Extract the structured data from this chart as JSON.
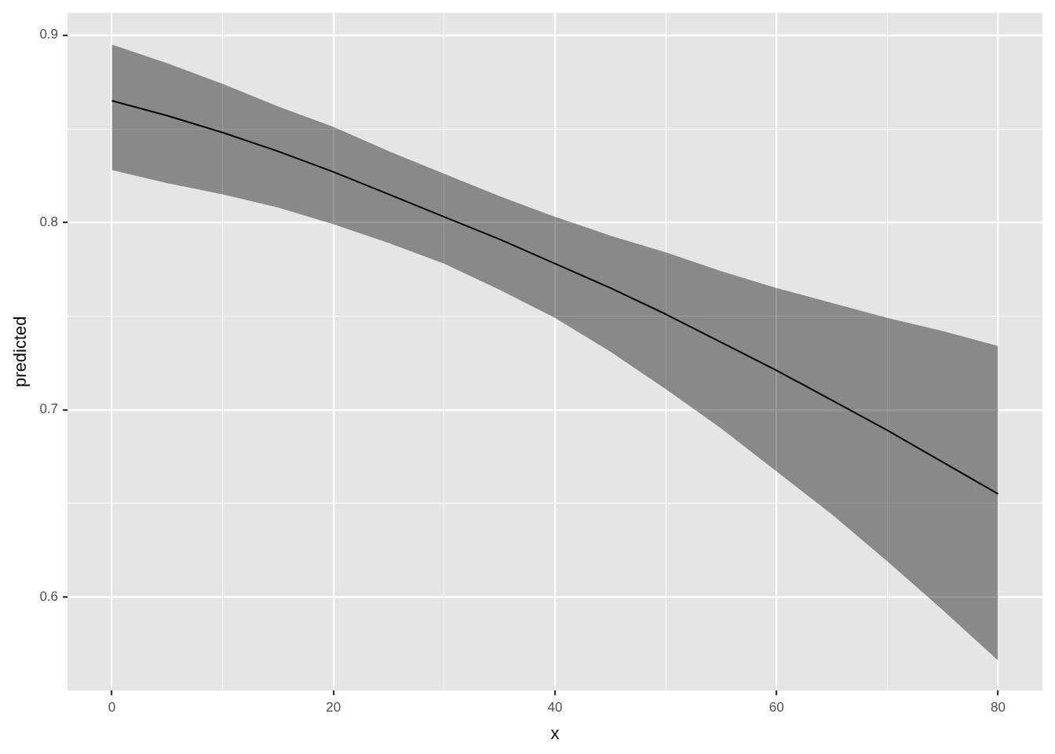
{
  "chart_data": {
    "type": "line",
    "xlabel": "x",
    "ylabel": "predicted",
    "x": [
      0,
      5,
      10,
      15,
      20,
      25,
      30,
      35,
      40,
      45,
      50,
      55,
      60,
      65,
      70,
      75,
      80
    ],
    "series": [
      {
        "color": "#000000",
        "values": [
          0.865,
          0.857,
          0.848,
          0.838,
          0.827,
          0.815,
          0.803,
          0.791,
          0.778,
          0.765,
          0.751,
          0.736,
          0.721,
          0.705,
          0.689,
          0.672,
          0.655
        ],
        "upper": [
          0.895,
          0.885,
          0.874,
          0.862,
          0.851,
          0.838,
          0.826,
          0.814,
          0.803,
          0.793,
          0.784,
          0.774,
          0.765,
          0.757,
          0.749,
          0.742,
          0.734
        ],
        "lower": [
          0.828,
          0.821,
          0.815,
          0.808,
          0.799,
          0.789,
          0.778,
          0.764,
          0.749,
          0.731,
          0.711,
          0.69,
          0.667,
          0.644,
          0.619,
          0.593,
          0.566
        ]
      }
    ],
    "xlim": [
      -4,
      84
    ],
    "xticks": [
      0,
      {
        "value": 10,
        "label": null
      },
      20,
      {
        "value": 30,
        "label": null
      },
      40,
      {
        "value": 50,
        "label": null
      },
      60,
      {
        "value": 70,
        "label": null
      },
      80
    ],
    "ylim": [
      0.55,
      0.912
    ],
    "yticks": [
      0.6,
      {
        "value": 0.65,
        "label": null
      },
      0.7,
      {
        "value": 0.75,
        "label": null
      },
      0.8,
      {
        "value": 0.85,
        "label": null
      },
      0.9
    ],
    "grid": true,
    "legend": false,
    "marker": "none",
    "line_style": "solid"
  }
}
